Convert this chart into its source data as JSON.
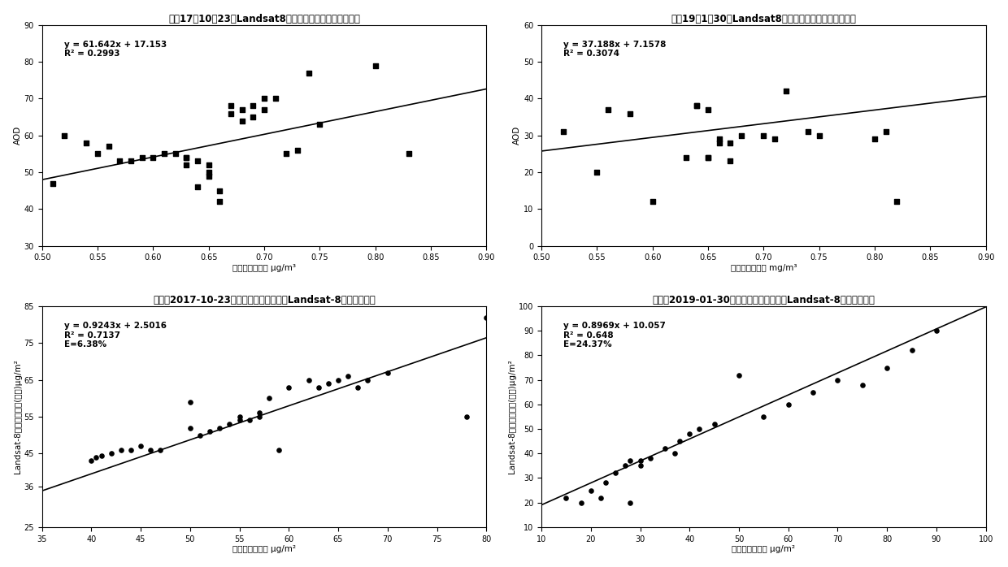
{
  "plots": [
    {
      "title": "广州17年10月23日Landsat8气溶胶光学厚度反演结果验证",
      "xlabel": "质量浓度实测值 μg/m³",
      "ylabel": "AOD",
      "equation": "y = 61.642x + 17.153",
      "r2": "R² = 0.2993",
      "xlim": [
        0.5,
        0.9
      ],
      "ylim": [
        30,
        90
      ],
      "xticks": [
        0.5,
        0.55,
        0.6,
        0.65,
        0.7,
        0.75,
        0.8,
        0.85,
        0.9
      ],
      "yticks": [
        30,
        40,
        50,
        60,
        70,
        80,
        90
      ],
      "slope": 61.642,
      "intercept": 17.153,
      "scatter_x": [
        0.51,
        0.52,
        0.54,
        0.55,
        0.56,
        0.57,
        0.58,
        0.59,
        0.6,
        0.61,
        0.62,
        0.63,
        0.63,
        0.63,
        0.64,
        0.64,
        0.65,
        0.65,
        0.65,
        0.66,
        0.66,
        0.67,
        0.67,
        0.68,
        0.68,
        0.69,
        0.69,
        0.7,
        0.7,
        0.71,
        0.72,
        0.73,
        0.74,
        0.75,
        0.8,
        0.83
      ],
      "scatter_y": [
        47,
        60,
        58,
        55,
        57,
        53,
        53,
        54,
        54,
        55,
        55,
        54,
        52,
        54,
        46,
        53,
        49,
        50,
        52,
        42,
        45,
        66,
        68,
        64,
        67,
        65,
        68,
        70,
        67,
        70,
        55,
        56,
        77,
        63,
        79,
        55
      ],
      "marker": "s",
      "extra_annotation": null
    },
    {
      "title": "广州19年1月30日Landsat8气溶胶光学厚度反演结果验证",
      "xlabel": "质面浓度实测值 mg/m³",
      "ylabel": "AOD",
      "equation": "y = 37.188x + 7.1578",
      "r2": "R² = 0.3074",
      "xlim": [
        0.5,
        0.9
      ],
      "ylim": [
        0,
        60
      ],
      "xticks": [
        0.5,
        0.55,
        0.6,
        0.65,
        0.7,
        0.75,
        0.8,
        0.85,
        0.9
      ],
      "yticks": [
        0,
        10,
        20,
        30,
        40,
        50,
        60
      ],
      "slope": 37.188,
      "intercept": 7.1578,
      "scatter_x": [
        0.52,
        0.55,
        0.56,
        0.58,
        0.6,
        0.63,
        0.64,
        0.64,
        0.65,
        0.65,
        0.65,
        0.66,
        0.66,
        0.67,
        0.67,
        0.68,
        0.7,
        0.71,
        0.72,
        0.74,
        0.75,
        0.8,
        0.81,
        0.82
      ],
      "scatter_y": [
        31,
        20,
        37,
        36,
        12,
        24,
        38,
        38,
        37,
        24,
        24,
        29,
        28,
        28,
        23,
        30,
        30,
        29,
        42,
        31,
        30,
        29,
        31,
        12
      ],
      "marker": "s",
      "extra_annotation": null
    },
    {
      "title": "珠三角2017-10-23气溶胶近地面质量浓度Landsat-8反演结果验证",
      "xlabel": "质量浓度实测值 μg/m²",
      "ylabel": "Landsat-8反演质量浓度(回归)μg/m²",
      "equation": "y = 0.9243x + 2.5016",
      "r2": "R² = 0.7137",
      "extra_annotation": "E=6.38%",
      "xlim": [
        35,
        80
      ],
      "ylim": [
        25,
        85
      ],
      "xticks": [
        35,
        40,
        45,
        50,
        55,
        60,
        65,
        70,
        75,
        80
      ],
      "yticks": [
        25,
        36,
        45,
        55,
        65,
        75,
        85
      ],
      "slope": 0.9243,
      "intercept": 2.5016,
      "scatter_x": [
        40,
        40.5,
        41,
        42,
        43,
        44,
        45,
        46,
        47,
        50,
        50,
        51,
        52,
        53,
        54,
        55,
        55,
        56,
        57,
        57,
        58,
        59,
        60,
        62,
        63,
        64,
        65,
        66,
        67,
        68,
        70,
        78,
        80
      ],
      "scatter_y": [
        43,
        44,
        44.5,
        45,
        46,
        46,
        47,
        46,
        46,
        52,
        59,
        50,
        51,
        52,
        53,
        54,
        55,
        54,
        55,
        56,
        60,
        46,
        63,
        65,
        63,
        64,
        65,
        66,
        63,
        65,
        67,
        55,
        82
      ],
      "marker": "o"
    },
    {
      "title": "珠三角2019-01-30气溶胶近地面质量浓度Landsat-8反演结果验证",
      "xlabel": "反密浓度实测值 μg/m²",
      "ylabel": "Landsat-8反演质量浓度(回归)μg/m²",
      "equation": "y = 0.8969x + 10.057",
      "r2": "R² = 0.648",
      "extra_annotation": "E=24.37%",
      "xlim": [
        10,
        100
      ],
      "ylim": [
        10,
        100
      ],
      "xticks": [
        10,
        20,
        30,
        40,
        50,
        60,
        70,
        80,
        90,
        100
      ],
      "yticks": [
        10,
        20,
        30,
        40,
        50,
        60,
        70,
        80,
        90,
        100
      ],
      "slope": 0.8969,
      "intercept": 10.057,
      "scatter_x": [
        15,
        18,
        20,
        22,
        23,
        25,
        27,
        28,
        28,
        30,
        30,
        32,
        35,
        37,
        38,
        40,
        42,
        45,
        50,
        55,
        60,
        65,
        70,
        75,
        80,
        85,
        90
      ],
      "scatter_y": [
        22,
        20,
        25,
        22,
        28,
        32,
        35,
        37,
        20,
        35,
        37,
        38,
        42,
        40,
        45,
        48,
        50,
        52,
        72,
        55,
        60,
        65,
        70,
        68,
        75,
        82,
        90
      ],
      "marker": "o"
    }
  ],
  "fig_width": 12.4,
  "fig_height": 6.98,
  "dpi": 100,
  "background_color": "#ffffff",
  "title_fontsize": 8.5,
  "label_fontsize": 7.5,
  "tick_fontsize": 7,
  "annotation_fontsize": 7.5
}
